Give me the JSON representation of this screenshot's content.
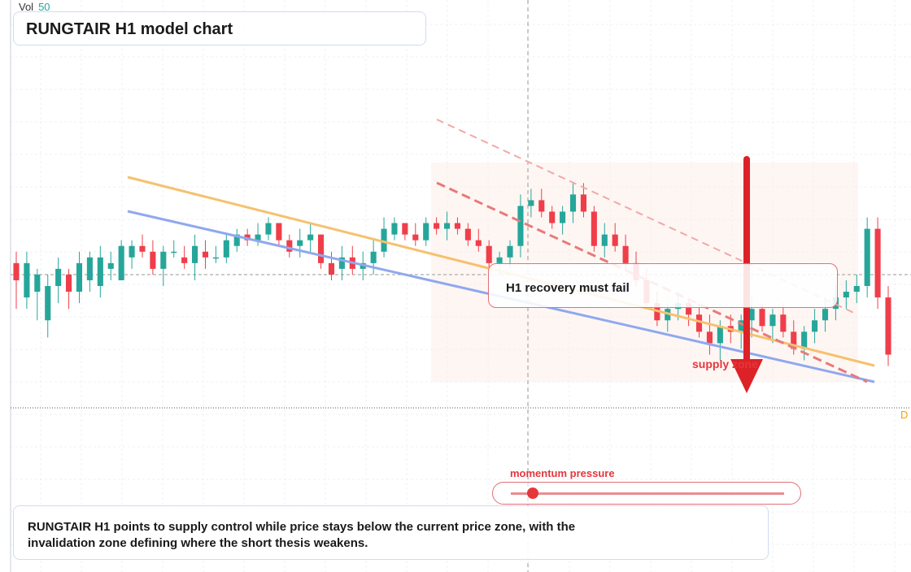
{
  "title": "RUNGTAIR H1 model chart",
  "volume_legend": {
    "label": "Vol",
    "value": "50"
  },
  "annotations": {
    "note": "H1 recovery must fail",
    "supply_label": "supply zone",
    "momentum_label": "momentum pressure",
    "momentum_level": 0.08,
    "summary": "RUNGTAIR H1 points to supply control while price stays below the current price zone, with the invalidation zone defining where the short thesis weakens.",
    "edge_tag": "D"
  },
  "colors": {
    "up": "#26a69a",
    "down": "#ef3e4a",
    "orange_line": "#f6c16d",
    "blue_line": "#8fa8ee",
    "dash_line": "#e87a7a",
    "arrow": "#dd2227"
  },
  "chart_data": {
    "type": "candlestick",
    "title": "RUNGTAIR H1 model chart",
    "ylim": [
      0,
      100
    ],
    "reference_levels": {
      "current_price": 50,
      "invalidation": 60
    },
    "candles": [
      {
        "o": 54,
        "h": 56,
        "l": 46,
        "c": 51
      },
      {
        "o": 48,
        "h": 56,
        "l": 46,
        "c": 54
      },
      {
        "o": 49,
        "h": 53,
        "l": 44,
        "c": 52
      },
      {
        "o": 44,
        "h": 52,
        "l": 41,
        "c": 50
      },
      {
        "o": 50,
        "h": 55,
        "l": 47,
        "c": 53
      },
      {
        "o": 52,
        "h": 53,
        "l": 46,
        "c": 49
      },
      {
        "o": 49,
        "h": 56,
        "l": 47,
        "c": 54
      },
      {
        "o": 51,
        "h": 56,
        "l": 49,
        "c": 55
      },
      {
        "o": 50,
        "h": 57,
        "l": 48,
        "c": 55
      },
      {
        "o": 53,
        "h": 56,
        "l": 51,
        "c": 54
      },
      {
        "o": 51,
        "h": 58,
        "l": 51,
        "c": 57
      },
      {
        "o": 55,
        "h": 58,
        "l": 53,
        "c": 57
      },
      {
        "o": 57,
        "h": 59,
        "l": 55,
        "c": 56
      },
      {
        "o": 56,
        "h": 58,
        "l": 52,
        "c": 53
      },
      {
        "o": 53,
        "h": 57,
        "l": 50,
        "c": 56
      },
      {
        "o": 56,
        "h": 58,
        "l": 55,
        "c": 56
      },
      {
        "o": 55,
        "h": 57,
        "l": 53,
        "c": 54
      },
      {
        "o": 54,
        "h": 59,
        "l": 51,
        "c": 57
      },
      {
        "o": 56,
        "h": 58,
        "l": 53,
        "c": 55
      },
      {
        "o": 55,
        "h": 57,
        "l": 54,
        "c": 55
      },
      {
        "o": 55,
        "h": 59,
        "l": 54,
        "c": 58
      },
      {
        "o": 57,
        "h": 60,
        "l": 56,
        "c": 59
      },
      {
        "o": 59,
        "h": 60,
        "l": 57,
        "c": 58
      },
      {
        "o": 58,
        "h": 61,
        "l": 57,
        "c": 59
      },
      {
        "o": 59,
        "h": 62,
        "l": 58,
        "c": 61
      },
      {
        "o": 61,
        "h": 61,
        "l": 57,
        "c": 58
      },
      {
        "o": 58,
        "h": 59,
        "l": 55,
        "c": 56
      },
      {
        "o": 57,
        "h": 60,
        "l": 55,
        "c": 58
      },
      {
        "o": 58,
        "h": 61,
        "l": 56,
        "c": 59
      },
      {
        "o": 59,
        "h": 59,
        "l": 53,
        "c": 54
      },
      {
        "o": 54,
        "h": 56,
        "l": 51,
        "c": 52
      },
      {
        "o": 53,
        "h": 57,
        "l": 51,
        "c": 55
      },
      {
        "o": 55,
        "h": 57,
        "l": 52,
        "c": 53
      },
      {
        "o": 53,
        "h": 56,
        "l": 51,
        "c": 54
      },
      {
        "o": 54,
        "h": 58,
        "l": 52,
        "c": 56
      },
      {
        "o": 56,
        "h": 62,
        "l": 55,
        "c": 60
      },
      {
        "o": 59,
        "h": 62,
        "l": 58,
        "c": 61
      },
      {
        "o": 61,
        "h": 61,
        "l": 58,
        "c": 59
      },
      {
        "o": 59,
        "h": 61,
        "l": 57,
        "c": 58
      },
      {
        "o": 58,
        "h": 62,
        "l": 57,
        "c": 61
      },
      {
        "o": 61,
        "h": 62,
        "l": 59,
        "c": 60
      },
      {
        "o": 60,
        "h": 63,
        "l": 58,
        "c": 61
      },
      {
        "o": 61,
        "h": 62,
        "l": 59,
        "c": 60
      },
      {
        "o": 60,
        "h": 61,
        "l": 57,
        "c": 58
      },
      {
        "o": 58,
        "h": 60,
        "l": 56,
        "c": 57
      },
      {
        "o": 57,
        "h": 58,
        "l": 53,
        "c": 54
      },
      {
        "o": 54,
        "h": 56,
        "l": 52,
        "c": 55
      },
      {
        "o": 55,
        "h": 58,
        "l": 53,
        "c": 57
      },
      {
        "o": 57,
        "h": 66,
        "l": 55,
        "c": 64
      },
      {
        "o": 64,
        "h": 67,
        "l": 62,
        "c": 65
      },
      {
        "o": 65,
        "h": 67,
        "l": 62,
        "c": 63
      },
      {
        "o": 63,
        "h": 64,
        "l": 60,
        "c": 61
      },
      {
        "o": 61,
        "h": 64,
        "l": 59,
        "c": 63
      },
      {
        "o": 63,
        "h": 68,
        "l": 61,
        "c": 66
      },
      {
        "o": 66,
        "h": 68,
        "l": 62,
        "c": 63
      },
      {
        "o": 63,
        "h": 64,
        "l": 56,
        "c": 57
      },
      {
        "o": 57,
        "h": 61,
        "l": 55,
        "c": 59
      },
      {
        "o": 59,
        "h": 61,
        "l": 56,
        "c": 57
      },
      {
        "o": 57,
        "h": 59,
        "l": 53,
        "c": 54
      },
      {
        "o": 54,
        "h": 56,
        "l": 50,
        "c": 51
      },
      {
        "o": 51,
        "h": 53,
        "l": 46,
        "c": 47
      },
      {
        "o": 47,
        "h": 49,
        "l": 43,
        "c": 44
      },
      {
        "o": 44,
        "h": 47,
        "l": 42,
        "c": 46
      },
      {
        "o": 46,
        "h": 49,
        "l": 44,
        "c": 47
      },
      {
        "o": 47,
        "h": 48,
        "l": 43,
        "c": 45
      },
      {
        "o": 45,
        "h": 47,
        "l": 41,
        "c": 42
      },
      {
        "o": 42,
        "h": 45,
        "l": 38,
        "c": 40
      },
      {
        "o": 40,
        "h": 44,
        "l": 37,
        "c": 43
      },
      {
        "o": 43,
        "h": 45,
        "l": 40,
        "c": 42
      },
      {
        "o": 42,
        "h": 45,
        "l": 39,
        "c": 44
      },
      {
        "o": 44,
        "h": 48,
        "l": 41,
        "c": 46
      },
      {
        "o": 46,
        "h": 47,
        "l": 42,
        "c": 43
      },
      {
        "o": 43,
        "h": 46,
        "l": 40,
        "c": 45
      },
      {
        "o": 45,
        "h": 47,
        "l": 41,
        "c": 42
      },
      {
        "o": 42,
        "h": 44,
        "l": 38,
        "c": 39
      },
      {
        "o": 39,
        "h": 43,
        "l": 37,
        "c": 42
      },
      {
        "o": 42,
        "h": 46,
        "l": 40,
        "c": 44
      },
      {
        "o": 44,
        "h": 48,
        "l": 42,
        "c": 46
      },
      {
        "o": 46,
        "h": 50,
        "l": 44,
        "c": 48
      },
      {
        "o": 48,
        "h": 51,
        "l": 46,
        "c": 49
      },
      {
        "o": 49,
        "h": 52,
        "l": 47,
        "c": 50
      },
      {
        "o": 50,
        "h": 62,
        "l": 48,
        "c": 60
      },
      {
        "o": 60,
        "h": 62,
        "l": 46,
        "c": 48
      },
      {
        "o": 48,
        "h": 50,
        "l": 36,
        "c": 38
      }
    ]
  }
}
